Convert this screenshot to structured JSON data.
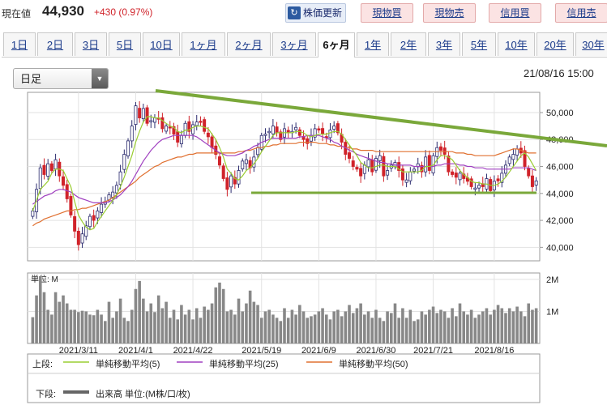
{
  "header": {
    "price_label": "現在値",
    "price": "44,930",
    "change": "+430 (0.97%)",
    "refresh_label": "株価更新",
    "buttons": [
      "現物買",
      "現物売",
      "信用買",
      "信用売"
    ]
  },
  "periods": {
    "tabs": [
      "1日",
      "2日",
      "3日",
      "5日",
      "10日",
      "1ヶ月",
      "2ヶ月",
      "3ヶ月",
      "6ヶ月",
      "1年",
      "2年",
      "3年",
      "5年",
      "10年",
      "20年",
      "30年"
    ],
    "active": "6ヶ月"
  },
  "controls": {
    "bar_type": "日足",
    "date": "21/08/16 15:00"
  },
  "colors": {
    "up": "#2b2b6e",
    "down": "#d0232a",
    "ma5": "#9acd32",
    "ma25": "#a040c0",
    "ma50": "#e07030",
    "trend": "#7aa83a",
    "volume": "#888888"
  },
  "legend": {
    "upper_label": "上段:",
    "lower_label": "下段:",
    "ma5": "単純移動平均(5)",
    "ma25": "単純移動平均(25)",
    "ma50": "単純移動平均(50)",
    "volume": "出来高 単位:(M株/口/枚)"
  },
  "chart_data": [
    {
      "type": "candlestick",
      "ylim": [
        39000,
        51500
      ],
      "yticks": [
        "40,000",
        "42,000",
        "44,000",
        "46,000",
        "48,000",
        "50,000"
      ],
      "ytick_values": [
        40000,
        42000,
        44000,
        46000,
        48000,
        50000
      ],
      "xlabels": [
        "2021/3/11",
        "2021/4/1",
        "2021/4/22",
        "2021/5/19",
        "2021/6/9",
        "2021/6/30",
        "2021/7/21",
        "2021/8/16"
      ],
      "xlabel_index": [
        12,
        27,
        42,
        60,
        75,
        90,
        105,
        121
      ],
      "closes": [
        42700,
        44300,
        45900,
        45400,
        46200,
        45700,
        46500,
        45300,
        44600,
        43600,
        42400,
        41200,
        40200,
        41000,
        41600,
        42300,
        42000,
        42700,
        43200,
        43400,
        43900,
        44100,
        44600,
        45600,
        46900,
        47900,
        49000,
        50500,
        49600,
        50300,
        49200,
        49400,
        49600,
        49500,
        48800,
        49000,
        48900,
        48400,
        47800,
        48300,
        49200,
        48600,
        49100,
        49300,
        49300,
        48600,
        48200,
        47400,
        46900,
        46100,
        45100,
        44300,
        45300,
        44700,
        45700,
        46400,
        46500,
        45900,
        46700,
        47400,
        48300,
        48400,
        48600,
        49000,
        48500,
        48000,
        48800,
        48500,
        48600,
        48900,
        48300,
        48000,
        47700,
        48300,
        48800,
        48700,
        48400,
        48200,
        48700,
        49000,
        48500,
        47800,
        46900,
        46600,
        46000,
        45800,
        45300,
        46100,
        46500,
        45600,
        46600,
        46800,
        45300,
        45700,
        46100,
        46300,
        45700,
        45000,
        45000,
        45600,
        45800,
        46200,
        45600,
        46700,
        45700,
        46800,
        47400,
        47200,
        46900,
        45600,
        45400,
        45200,
        45500,
        45100,
        44900,
        44500,
        44400,
        44600,
        44500,
        45100,
        44200,
        44900,
        44930,
        45500,
        46100,
        46700,
        46900,
        47300,
        47000,
        46000,
        45300,
        44500,
        44930
      ],
      "ma5": [
        42700,
        43500,
        44300,
        44600,
        44900,
        45500,
        45800,
        45800,
        45700,
        45100,
        44500,
        43400,
        42400,
        41900,
        41500,
        41300,
        41400,
        41900,
        42300,
        42700,
        43100,
        43500,
        43900,
        44500,
        45200,
        46000,
        46800,
        47800,
        48600,
        49300,
        49700,
        49700,
        49600,
        49600,
        49400,
        49200,
        49000,
        48900,
        48600,
        48500,
        48700,
        48700,
        48900,
        49000,
        49000,
        48900,
        48800,
        48400,
        48000,
        47400,
        46700,
        45800,
        45500,
        45100,
        45000,
        45300,
        45700,
        45900,
        46200,
        46600,
        47100,
        47500,
        47900,
        48300,
        48500,
        48500,
        48500,
        48500,
        48500,
        48600,
        48600,
        48500,
        48300,
        48200,
        48300,
        48400,
        48400,
        48400,
        48500,
        48600,
        48600,
        48400,
        48000,
        47600,
        47200,
        46800,
        46300,
        46100,
        45900,
        45900,
        46000,
        46100,
        46100,
        46000,
        46000,
        46000,
        45800,
        45600,
        45600,
        45600,
        45600,
        45600,
        45700,
        46000,
        46000,
        46100,
        46500,
        46800,
        46800,
        46700,
        46500,
        46100,
        45700,
        45400,
        45200,
        44900,
        44800,
        44800,
        44700,
        44700,
        44600,
        44600,
        44700,
        44900,
        45200,
        45600,
        46000,
        46400,
        46800,
        47000,
        46700,
        46200,
        45700
      ],
      "ma25": [
        43200,
        43400,
        43600,
        43800,
        43900,
        44000,
        44200,
        44300,
        44300,
        44200,
        44100,
        43900,
        43700,
        43600,
        43500,
        43400,
        43300,
        43300,
        43300,
        43300,
        43400,
        43500,
        43700,
        43900,
        44200,
        44500,
        44900,
        45400,
        45900,
        46400,
        46800,
        47200,
        47500,
        47800,
        48000,
        48100,
        48200,
        48300,
        48300,
        48300,
        48300,
        48300,
        48300,
        48200,
        48000,
        47800,
        47600,
        47400,
        47200,
        47000,
        46900,
        46800,
        46800,
        46800,
        46900,
        47000,
        47200,
        47300,
        47500,
        47600,
        47800,
        47900,
        48000,
        48100,
        48100,
        48100,
        48100,
        48100,
        48100,
        48100,
        48200,
        48200,
        48300,
        48300,
        48300,
        48300,
        48200,
        48100,
        48000,
        47800,
        47700,
        47500,
        47400,
        47200,
        47100,
        46900,
        46800,
        46700,
        46600,
        46500,
        46400,
        46300,
        46300,
        46200,
        46200,
        46100,
        46100,
        46100,
        46100,
        46100,
        46000,
        46000,
        46000,
        46000,
        46000,
        46000,
        46100,
        46100,
        46200,
        46200,
        46200,
        46200,
        46100,
        46100,
        46000,
        46000,
        45900,
        45900,
        45900,
        45800,
        45800,
        45800,
        45800,
        45800,
        45800,
        45800,
        45900,
        45900,
        45900,
        45900,
        45900,
        45800,
        45700
      ],
      "ma50": [
        41600,
        41800,
        41900,
        42100,
        42200,
        42300,
        42400,
        42500,
        42600,
        42700,
        42700,
        42800,
        42800,
        42900,
        42900,
        43000,
        43100,
        43200,
        43300,
        43400,
        43500,
        43700,
        43900,
        44100,
        44300,
        44500,
        44700,
        44900,
        45200,
        45400,
        45600,
        45800,
        46000,
        46100,
        46300,
        46400,
        46500,
        46600,
        46700,
        46700,
        46800,
        46900,
        46900,
        47000,
        47000,
        47000,
        47000,
        47000,
        47000,
        47000,
        47000,
        47000,
        47000,
        47000,
        47100,
        47100,
        47200,
        47200,
        47300,
        47400,
        47400,
        47500,
        47500,
        47600,
        47600,
        47700,
        47700,
        47700,
        47700,
        47700,
        47800,
        47800,
        47800,
        47800,
        47800,
        47700,
        47700,
        47700,
        47600,
        47600,
        47500,
        47500,
        47400,
        47400,
        47300,
        47300,
        47200,
        47200,
        47200,
        47200,
        47100,
        47100,
        47100,
        47100,
        47100,
        47100,
        47100,
        47100,
        47100,
        47100,
        47100,
        47100,
        47100,
        47100,
        47100,
        47100,
        47100,
        47100,
        47100,
        47100,
        47100,
        47000,
        47000,
        47000,
        46900,
        46900,
        46800,
        46800,
        46800,
        46800,
        46800,
        46800,
        46900,
        47000,
        47100,
        47200,
        47300,
        47300,
        47200,
        47100,
        47000,
        47000,
        47000
      ]
    },
    {
      "type": "bar",
      "ylim": [
        0,
        2200000
      ],
      "yticks": [
        "1M",
        "2M"
      ],
      "ytick_values": [
        1000000,
        2000000
      ],
      "unit_label": "単位: M",
      "values": [
        820000,
        1500000,
        2100000,
        1600000,
        1050000,
        900000,
        1600000,
        1300000,
        1500000,
        1250000,
        1050000,
        1050000,
        980000,
        1020000,
        1000000,
        900000,
        880000,
        1050000,
        900000,
        700000,
        1300000,
        800000,
        1000000,
        1400000,
        800000,
        700000,
        1050000,
        1700000,
        1950000,
        1400000,
        1000000,
        1250000,
        980000,
        1500000,
        1100000,
        1300000,
        800000,
        1050000,
        750000,
        1200000,
        900000,
        1050000,
        750000,
        1100000,
        800000,
        1150000,
        1050000,
        1250000,
        1750000,
        1900000,
        1700000,
        1000000,
        1050000,
        900000,
        1400000,
        1000000,
        1250000,
        1650000,
        1300000,
        1200000,
        800000,
        1000000,
        1050000,
        900000,
        800000,
        700000,
        1100000,
        800000,
        1050000,
        900000,
        1200000,
        1000000,
        800000,
        850000,
        900000,
        1000000,
        1100000,
        900000,
        750000,
        1000000,
        1050000,
        850000,
        1000000,
        1200000,
        950000,
        1100000,
        1250000,
        900000,
        1000000,
        800000,
        1050000,
        800000,
        700000,
        1000000,
        950000,
        1250000,
        800000,
        1100000,
        800000,
        1050000,
        700000,
        750000,
        1000000,
        900000,
        1050000,
        1150000,
        950000,
        1050000,
        1000000,
        800000,
        1100000,
        850000,
        1250000,
        1000000,
        900000,
        1050000,
        800000,
        900000,
        1000000,
        1100000,
        900000,
        1050000,
        1200000,
        1100000,
        950000,
        1100000,
        1000000,
        1150000,
        1000000,
        850000,
        1250000,
        1050000,
        1100000
      ]
    }
  ]
}
